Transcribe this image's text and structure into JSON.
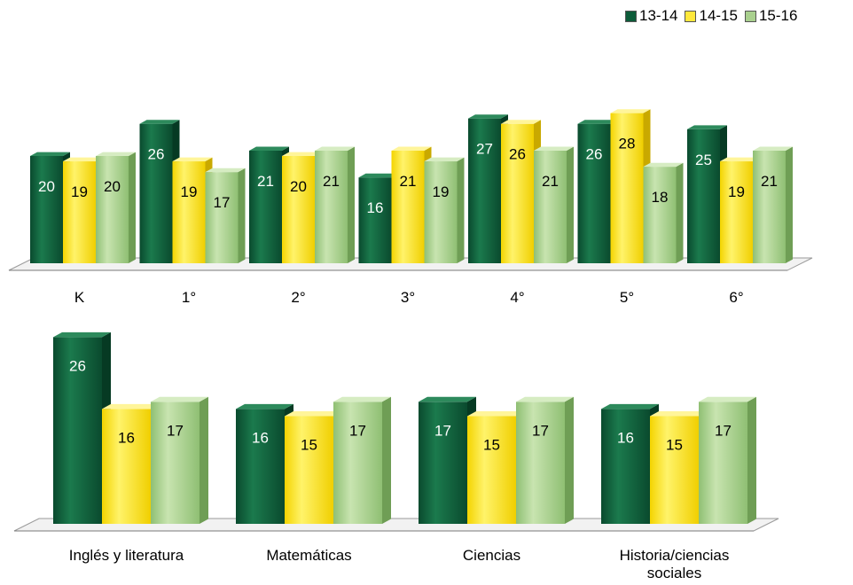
{
  "legend": [
    "13-14",
    "14-15",
    "15-16"
  ],
  "colors": {
    "13-14": "#0d5c3a",
    "14-15": "#ffe83c",
    "15-16": "#a9d08e"
  },
  "chart_data": [
    {
      "type": "bar",
      "categories": [
        "K",
        "1°",
        "2°",
        "3°",
        "4°",
        "5°",
        "6°"
      ],
      "series": [
        {
          "name": "13-14",
          "values": [
            20,
            26,
            21,
            16,
            27,
            26,
            25
          ]
        },
        {
          "name": "14-15",
          "values": [
            19,
            19,
            20,
            21,
            26,
            28,
            19
          ]
        },
        {
          "name": "15-16",
          "values": [
            20,
            17,
            21,
            19,
            21,
            18,
            21
          ]
        }
      ],
      "legend_position": "top-right"
    },
    {
      "type": "bar",
      "categories": [
        "Inglés y literatura",
        "Matemáticas",
        "Ciencias",
        "Historia/ciencias sociales"
      ],
      "series": [
        {
          "name": "13-14",
          "values": [
            26,
            16,
            17,
            16
          ]
        },
        {
          "name": "14-15",
          "values": [
            16,
            15,
            15,
            15
          ]
        },
        {
          "name": "15-16",
          "values": [
            17,
            17,
            17,
            17
          ]
        }
      ]
    }
  ]
}
